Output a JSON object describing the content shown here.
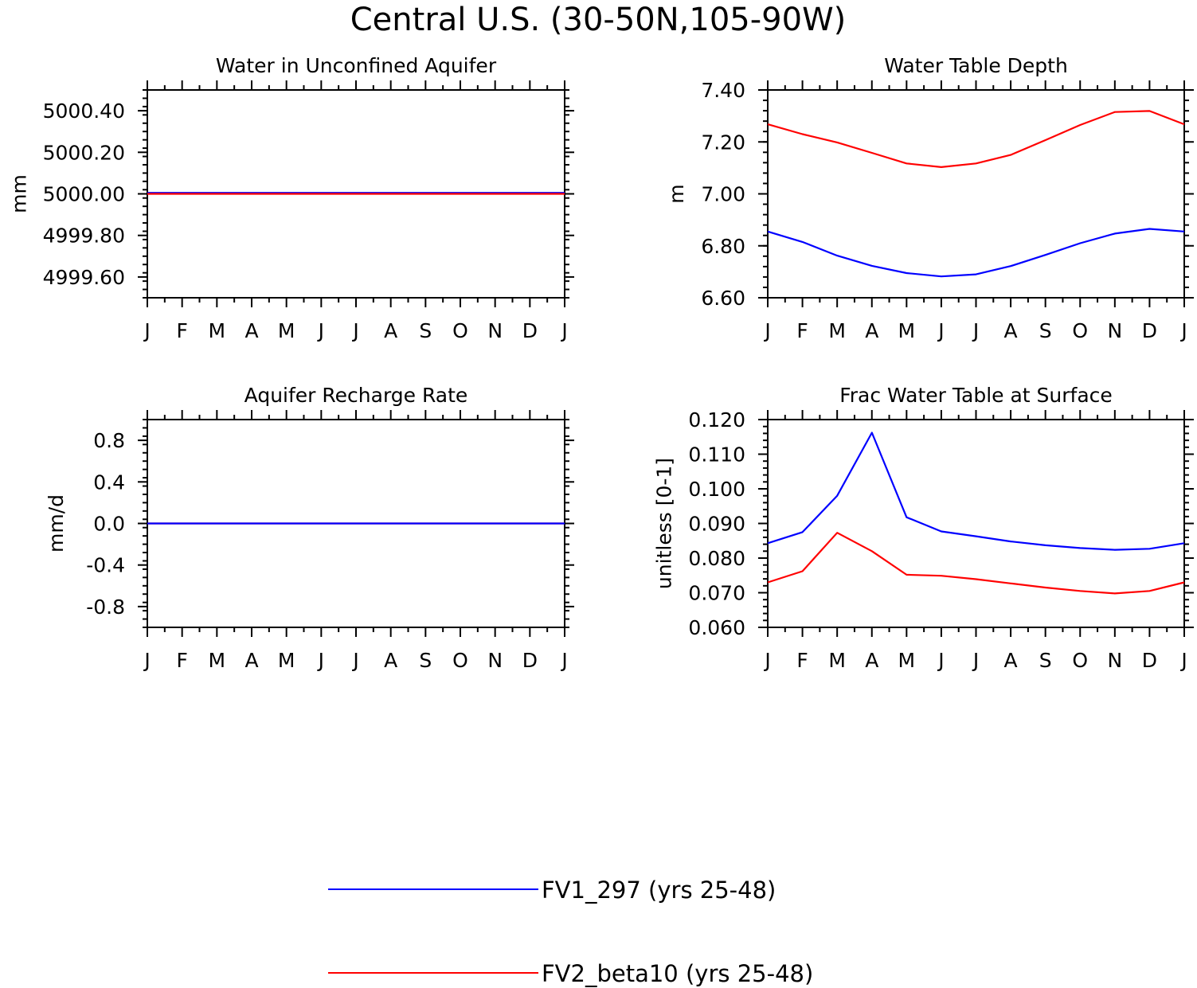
{
  "title": "Central U.S. (30-50N,105-90W)",
  "colors": {
    "series1": "#0000ff",
    "series2": "#ff0000",
    "axis": "#000000"
  },
  "legend": {
    "entries": [
      {
        "label": "FV1_297 (yrs 25-48)",
        "color": "#0000ff"
      },
      {
        "label": "FV2_beta10 (yrs 25-48)",
        "color": "#ff0000"
      }
    ]
  },
  "chart_data": [
    {
      "id": "p1",
      "type": "line",
      "title": "Water in Unconfined Aquifer",
      "xlabel": "",
      "ylabel": "mm",
      "categories": [
        "J",
        "F",
        "M",
        "A",
        "M",
        "J",
        "J",
        "A",
        "S",
        "O",
        "N",
        "D",
        "J"
      ],
      "ylim": [
        4999.5,
        5000.5
      ],
      "yticks": [
        4999.6,
        4999.8,
        5000.0,
        5000.2,
        5000.4
      ],
      "ytick_labels": [
        "4999.60",
        "4999.80",
        "5000.00",
        "5000.20",
        "5000.40"
      ],
      "series": [
        {
          "name": "FV1_297 (yrs 25-48)",
          "color": "#0000ff",
          "values": [
            5000.005,
            5000.005,
            5000.005,
            5000.005,
            5000.005,
            5000.005,
            5000.005,
            5000.005,
            5000.005,
            5000.005,
            5000.005,
            5000.005,
            5000.005
          ]
        },
        {
          "name": "FV2_beta10 (yrs 25-48)",
          "color": "#ff0000",
          "values": [
            5000.0,
            5000.0,
            5000.0,
            5000.0,
            5000.0,
            5000.0,
            5000.0,
            5000.0,
            5000.0,
            5000.0,
            5000.0,
            5000.0,
            5000.0
          ]
        }
      ]
    },
    {
      "id": "p2",
      "type": "line",
      "title": "Water Table Depth",
      "xlabel": "",
      "ylabel": "m",
      "categories": [
        "J",
        "F",
        "M",
        "A",
        "M",
        "J",
        "J",
        "A",
        "S",
        "O",
        "N",
        "D",
        "J"
      ],
      "ylim": [
        6.6,
        7.4
      ],
      "yticks": [
        6.6,
        6.8,
        7.0,
        7.2,
        7.4
      ],
      "ytick_labels": [
        "6.60",
        "6.80",
        "7.00",
        "7.20",
        "7.40"
      ],
      "series": [
        {
          "name": "FV1_297 (yrs 25-48)",
          "color": "#0000ff",
          "values": [
            6.855,
            6.815,
            6.762,
            6.723,
            6.695,
            6.682,
            6.69,
            6.722,
            6.765,
            6.81,
            6.847,
            6.865,
            6.855
          ]
        },
        {
          "name": "FV2_beta10 (yrs 25-48)",
          "color": "#ff0000",
          "values": [
            7.268,
            7.23,
            7.198,
            7.158,
            7.117,
            7.103,
            7.117,
            7.15,
            7.207,
            7.265,
            7.315,
            7.319,
            7.268
          ]
        }
      ]
    },
    {
      "id": "p3",
      "type": "line",
      "title": "Aquifer Recharge Rate",
      "xlabel": "",
      "ylabel": "mm/d",
      "categories": [
        "J",
        "F",
        "M",
        "A",
        "M",
        "J",
        "J",
        "A",
        "S",
        "O",
        "N",
        "D",
        "J"
      ],
      "ylim": [
        -1.0,
        1.0
      ],
      "yticks": [
        -0.8,
        -0.4,
        0.0,
        0.4,
        0.8
      ],
      "ytick_labels": [
        "-0.8",
        "-0.4",
        "0.0",
        "0.4",
        "0.8"
      ],
      "series": [
        {
          "name": "FV2_beta10 (yrs 25-48)",
          "color": "#ff0000",
          "values": [
            0,
            0,
            0,
            0,
            0,
            0,
            0,
            0,
            0,
            0,
            0,
            0,
            0
          ]
        },
        {
          "name": "FV1_297 (yrs 25-48)",
          "color": "#0000ff",
          "values": [
            0,
            0,
            0,
            0,
            0,
            0,
            0,
            0,
            0,
            0,
            0,
            0,
            0
          ]
        }
      ]
    },
    {
      "id": "p4",
      "type": "line",
      "title": "Frac Water Table at Surface",
      "xlabel": "",
      "ylabel": "unitless [0-1]",
      "categories": [
        "J",
        "F",
        "M",
        "A",
        "M",
        "J",
        "J",
        "A",
        "S",
        "O",
        "N",
        "D",
        "J"
      ],
      "ylim": [
        0.06,
        0.12
      ],
      "yticks": [
        0.06,
        0.07,
        0.08,
        0.09,
        0.1,
        0.11,
        0.12
      ],
      "ytick_labels": [
        "0.060",
        "0.070",
        "0.080",
        "0.090",
        "0.100",
        "0.110",
        "0.120"
      ],
      "series": [
        {
          "name": "FV1_297 (yrs 25-48)",
          "color": "#0000ff",
          "values": [
            0.0843,
            0.0875,
            0.098,
            0.1162,
            0.0918,
            0.0877,
            0.0863,
            0.0848,
            0.0837,
            0.0829,
            0.0824,
            0.0827,
            0.0843
          ]
        },
        {
          "name": "FV2_beta10 (yrs 25-48)",
          "color": "#ff0000",
          "values": [
            0.073,
            0.0762,
            0.0873,
            0.082,
            0.0752,
            0.0749,
            0.0739,
            0.0727,
            0.0715,
            0.0705,
            0.0698,
            0.0705,
            0.073
          ]
        }
      ]
    }
  ]
}
